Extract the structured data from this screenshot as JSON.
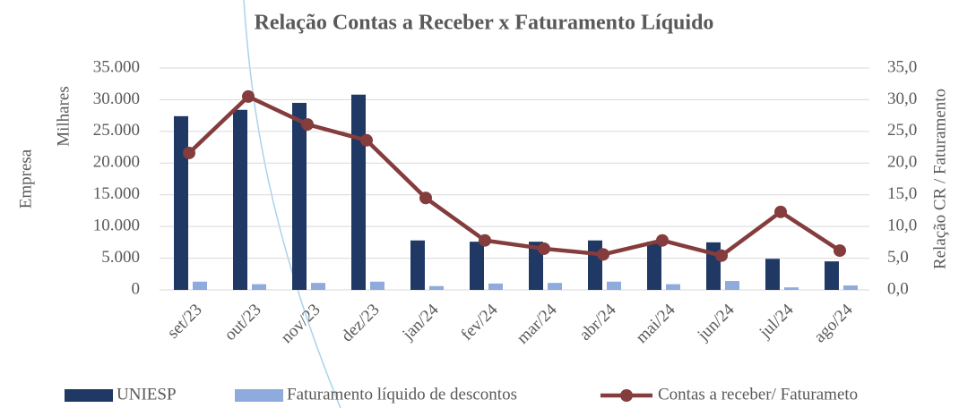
{
  "chart_data": {
    "type": "bar_line",
    "title": "Relação Contas a Receber x Faturamento Líquido",
    "y_label": "Empresa",
    "y_unit": "Milhares",
    "y2_label": "Relação CR / Faturamento",
    "categories": [
      "set/23",
      "out/23",
      "nov/23",
      "dez/23",
      "jan/24",
      "fev/24",
      "mar/24",
      "abr/24",
      "mai/24",
      "jun/24",
      "jul/24",
      "ago/24"
    ],
    "series": [
      {
        "name": "UNIESP",
        "color": "#203864",
        "type": "bar",
        "values": [
          27400,
          28400,
          29500,
          30800,
          7800,
          7600,
          7600,
          7800,
          7600,
          7500,
          4900,
          4500
        ]
      },
      {
        "name": "Faturamento líquido de descontos",
        "color": "#8faadc",
        "type": "bar",
        "values": [
          1300,
          900,
          1100,
          1300,
          600,
          1000,
          1100,
          1300,
          900,
          1400,
          400,
          700
        ]
      },
      {
        "name": "Contas a receber/ Faturameto",
        "color": "#843c3c",
        "type": "line",
        "axis": "y2",
        "values": [
          21.6,
          30.5,
          26.1,
          23.6,
          14.5,
          7.8,
          6.5,
          5.6,
          7.8,
          5.4,
          12.3,
          6.2
        ]
      }
    ],
    "ylim": [
      0,
      35000
    ],
    "yticks": [
      0,
      {
        "value": 5000,
        "label": "5.000"
      },
      {
        "value": 10000,
        "label": "10.000"
      },
      {
        "value": 15000,
        "label": "15.000"
      },
      {
        "value": 20000,
        "label": "20.000"
      },
      {
        "value": 25000,
        "label": "25.000"
      },
      {
        "value": 30000,
        "label": "30.000"
      },
      {
        "value": 35000,
        "label": "35.000"
      }
    ],
    "y2lim": [
      0,
      35
    ],
    "y2ticks": [
      {
        "value": 0,
        "label": "0,0"
      },
      {
        "value": 5,
        "label": "5,0"
      },
      {
        "value": 10,
        "label": "10,0"
      },
      {
        "value": 15,
        "label": "15,0"
      },
      {
        "value": 20,
        "label": "20,0"
      },
      {
        "value": 25,
        "label": "25,0"
      },
      {
        "value": 30,
        "label": "30,0"
      },
      {
        "value": 35,
        "label": "35,0"
      }
    ],
    "grid": true,
    "legend": "bottom"
  }
}
